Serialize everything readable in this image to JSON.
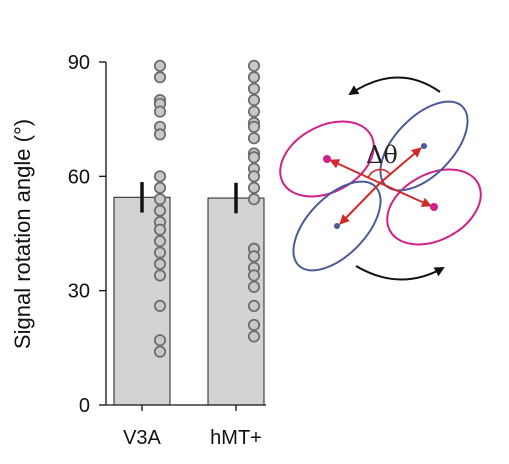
{
  "chart_data": {
    "type": "bar",
    "categories": [
      "V3A",
      "hMT+"
    ],
    "ylabel": "Signal rotation angle (°)",
    "ylim": [
      0,
      90
    ],
    "yticks": [
      0,
      30,
      60,
      90
    ],
    "grid": false,
    "bars": [
      {
        "category": "V3A",
        "mean": 54.5,
        "err_low": 50.5,
        "err_high": 58.5
      },
      {
        "category": "hMT+",
        "mean": 54.3,
        "err_low": 50.3,
        "err_high": 58.3
      }
    ],
    "points": {
      "V3A": [
        89,
        86,
        80,
        79,
        77,
        73,
        71,
        60,
        57,
        54,
        51,
        48,
        46,
        43,
        40,
        37,
        34,
        26,
        17,
        14
      ],
      "hMT+": [
        89,
        86,
        83,
        80,
        77,
        74,
        73,
        70,
        66,
        65,
        62,
        60,
        57,
        54,
        41,
        39,
        36,
        34,
        31,
        26,
        21,
        18
      ]
    },
    "colors": {
      "bar": "#d3d3d3",
      "point_fill": "#c8c8c8",
      "point_edge": "#6e6e6e",
      "errorbar": "#111111"
    }
  },
  "diagram": {
    "angle_label": "Δθ",
    "colors": {
      "ellipse_a": "#d0208a",
      "ellipse_b": "#4a5a9a",
      "arrow": "#d12a2a",
      "rotation_arrow": "#111111"
    }
  }
}
